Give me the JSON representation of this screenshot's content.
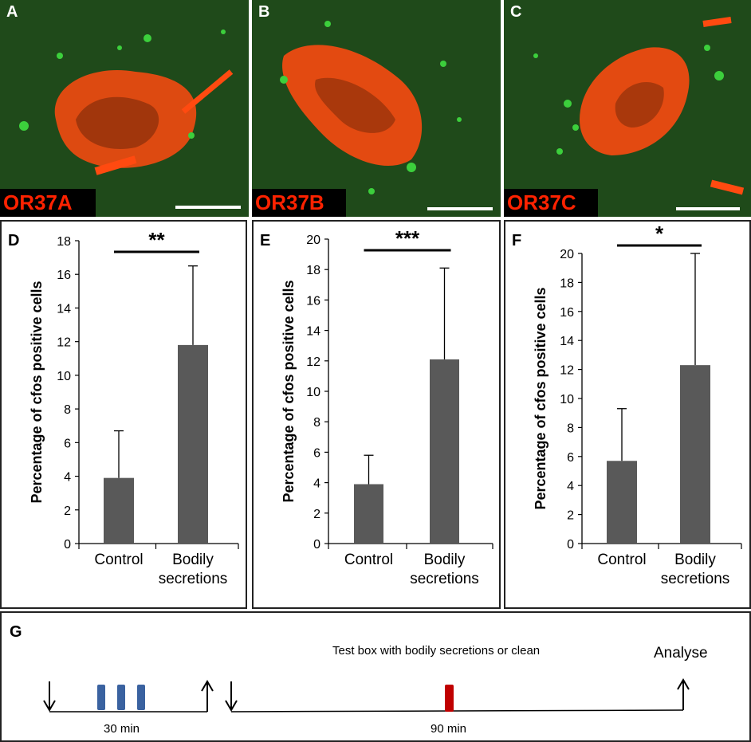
{
  "images": [
    {
      "letter": "A",
      "tag": "OR37A"
    },
    {
      "letter": "B",
      "tag": "OR37B"
    },
    {
      "letter": "C",
      "tag": "OR37C"
    }
  ],
  "colors": {
    "bar": "#595959",
    "signal_red": "#ff4a10",
    "signal_green": "#3ccf3c",
    "tissue": "#1f4a1a",
    "tag_text": "#ff2200",
    "pulse_blue": "#3a62a0",
    "pulse_red": "#c00000"
  },
  "chart_data": [
    {
      "letter": "D",
      "type": "bar",
      "categories": [
        "Control",
        "Bodily secretions"
      ],
      "category_lines": [
        [
          "Control"
        ],
        [
          "Bodily",
          "secretions"
        ]
      ],
      "values": [
        3.9,
        11.8
      ],
      "errors_upper": [
        2.8,
        4.7
      ],
      "ylim": [
        0,
        18
      ],
      "yticks": [
        0,
        2,
        4,
        6,
        8,
        10,
        12,
        14,
        16,
        18
      ],
      "ylabel": "Percentage of cfos positive cells",
      "significance": "**"
    },
    {
      "letter": "E",
      "type": "bar",
      "categories": [
        "Control",
        "Bodily secretions"
      ],
      "category_lines": [
        [
          "Control"
        ],
        [
          "Bodily",
          "secretions"
        ]
      ],
      "values": [
        3.9,
        12.1
      ],
      "errors_upper": [
        1.9,
        6.0
      ],
      "ylim": [
        0,
        20
      ],
      "yticks": [
        0,
        2,
        4,
        6,
        8,
        10,
        12,
        14,
        16,
        18,
        20
      ],
      "ylabel": "Percentage of cfos positive cells",
      "significance": "***"
    },
    {
      "letter": "F",
      "type": "bar",
      "categories": [
        "Control",
        "Bodily secretions"
      ],
      "category_lines": [
        [
          "Control"
        ],
        [
          "Bodily",
          "secretions"
        ]
      ],
      "values": [
        5.7,
        12.3
      ],
      "errors_upper": [
        3.6,
        7.7
      ],
      "ylim": [
        0,
        20
      ],
      "yticks": [
        0,
        2,
        4,
        6,
        8,
        10,
        12,
        14,
        16,
        18,
        20
      ],
      "ylabel": "Percentage of cfos positive cells",
      "significance": "*"
    }
  ],
  "timeline": {
    "letter": "G",
    "test_label": "Test box with bodily secretions or clean",
    "analyse_label": "Analyse",
    "first_duration": "30 min",
    "second_duration": "90 min"
  }
}
